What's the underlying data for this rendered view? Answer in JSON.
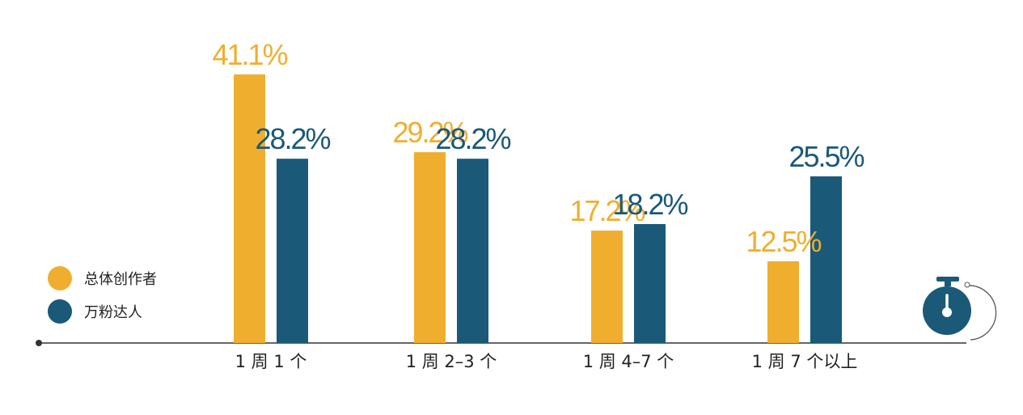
{
  "chart_data": {
    "type": "bar",
    "categories": [
      "1 周 1 个",
      "1 周 2–3 个",
      "1 周 4–7 个",
      "1 周 7 个以上"
    ],
    "series": [
      {
        "name": "总体创作者",
        "color": "#F0AE2E",
        "values": [
          41.1,
          29.2,
          17.2,
          12.5
        ],
        "labels": [
          "41.1%",
          "29.2%",
          "17.2%",
          "12.5%"
        ]
      },
      {
        "name": "万粉达人",
        "color": "#1A5978",
        "values": [
          28.2,
          28.2,
          18.2,
          25.5
        ],
        "labels": [
          "28.2%",
          "28.2%",
          "18.2%",
          "25.5%"
        ]
      }
    ],
    "ylim": [
      0,
      45
    ],
    "grid": false,
    "legend_position": "left",
    "axis_icon": "stopwatch-icon"
  }
}
